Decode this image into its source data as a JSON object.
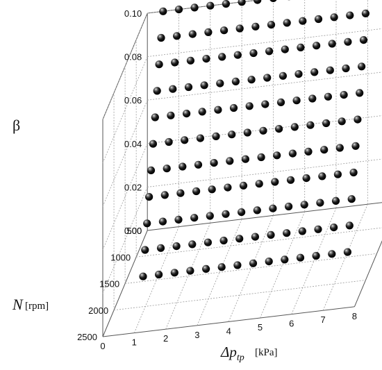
{
  "chart_data": {
    "type": "scatter",
    "xlabel": "Δp",
    "xlabel_sub": "tp",
    "xlabel_unit": "[kPa]",
    "ylabel": "N",
    "ylabel_unit": "[rpm]",
    "zlabel": "β",
    "x_ticks": [
      "0",
      "1",
      "2",
      "3",
      "4",
      "5",
      "6",
      "7",
      "8"
    ],
    "y_ticks": [
      "500",
      "1000",
      "1500",
      "2000",
      "2500"
    ],
    "z_ticks": [
      "0.00",
      "0.02",
      "0.04",
      "0.06",
      "0.08",
      "0.10"
    ],
    "xlim": [
      0,
      8
    ],
    "ylim": [
      500,
      2500
    ],
    "zlim": [
      0,
      0.1
    ],
    "marker_color": "#111111",
    "note": "Grid of experimental points; x values 0.5–7.0 kPa, N = 500 rpm, β varies from 0 to 0.10 in 0.01 steps",
    "x_values": [
      0.5,
      1.0,
      1.5,
      2.0,
      2.5,
      3.0,
      3.5,
      4.0,
      4.5,
      5.0,
      5.5,
      6.0,
      6.5,
      7.0
    ],
    "beta_values": [
      0.0,
      0.01,
      0.02,
      0.03,
      0.04,
      0.05,
      0.06,
      0.07,
      0.08,
      0.09,
      0.1
    ],
    "N_value": 500
  }
}
